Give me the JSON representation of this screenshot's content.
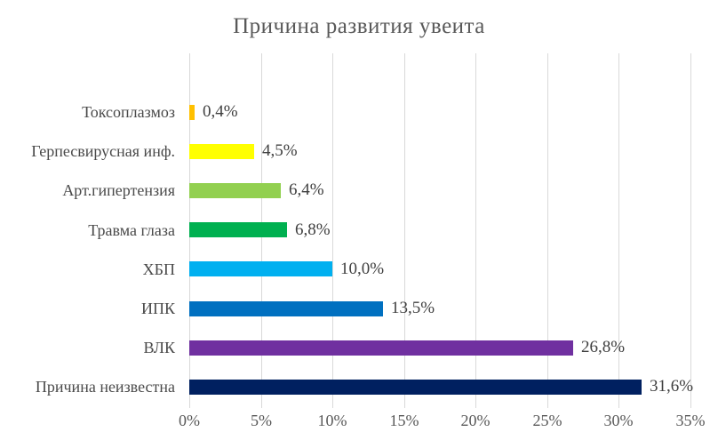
{
  "chart_data": {
    "type": "bar",
    "orientation": "horizontal",
    "title": "Причина развития увеита",
    "categories": [
      "Токсоплазмоз",
      "Герпесвирусная инф.",
      "Арт.гипертензия",
      "Травма глаза",
      "ХБП",
      "ИПК",
      "ВЛК",
      "Причина неизвестна"
    ],
    "values": [
      0.4,
      4.5,
      6.4,
      6.8,
      10.0,
      13.5,
      26.8,
      31.6
    ],
    "value_labels": [
      "0,4%",
      "4,5%",
      "6,4%",
      "6,8%",
      "10,0%",
      "13,5%",
      "26,8%",
      "31,6%"
    ],
    "bar_colors": [
      "#FFC000",
      "#FFFF00",
      "#92D050",
      "#00B050",
      "#00B0F0",
      "#0070C0",
      "#7030A0",
      "#002060"
    ],
    "x_ticks": [
      "0%",
      "5%",
      "10%",
      "15%",
      "20%",
      "25%",
      "30%",
      "35%"
    ],
    "x_tick_values": [
      0,
      5,
      10,
      15,
      20,
      25,
      30,
      35
    ],
    "xlim": [
      0,
      35
    ],
    "grid": "vertical-only",
    "legend": "none",
    "colors": {
      "title_text": "#595959",
      "axis_text": "#595959",
      "value_label_text": "#404040",
      "category_text": "#4a4a4a",
      "gridline": "#d9d9d9",
      "background": "#ffffff"
    }
  }
}
